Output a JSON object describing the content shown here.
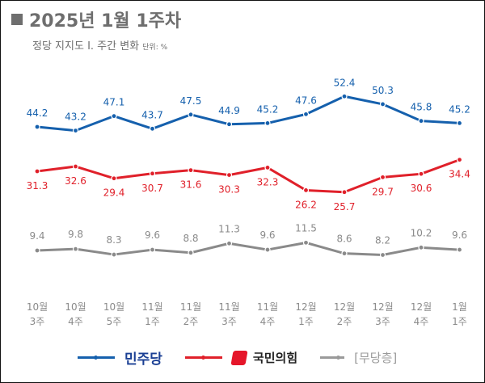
{
  "header": {
    "title": "2025년 1월 1주차",
    "subtitle": "정당 지지도 Ⅰ. 주간 변화",
    "unit": "단위: %"
  },
  "chart_data": {
    "type": "line",
    "title": "2025년 1월 1주차",
    "subtitle": "정당 지지도 Ⅰ. 주간 변화",
    "unit": "단위: %",
    "categories": [
      [
        "10월",
        "3주"
      ],
      [
        "10월",
        "4주"
      ],
      [
        "10월",
        "5주"
      ],
      [
        "11월",
        "1주"
      ],
      [
        "11월",
        "2주"
      ],
      [
        "11월",
        "3주"
      ],
      [
        "11월",
        "4주"
      ],
      [
        "12월",
        "1주"
      ],
      [
        "12월",
        "2주"
      ],
      [
        "12월",
        "3주"
      ],
      [
        "12월",
        "4주"
      ],
      [
        "1월",
        "1주"
      ]
    ],
    "series": [
      {
        "name": "민주당",
        "color": "#1560ad",
        "values": [
          44.2,
          43.2,
          47.1,
          43.7,
          47.5,
          44.9,
          45.2,
          47.6,
          52.4,
          50.3,
          45.8,
          45.2
        ]
      },
      {
        "name": "국민의힘",
        "color": "#e0202a",
        "values": [
          31.3,
          32.6,
          29.4,
          30.7,
          31.6,
          30.3,
          32.3,
          26.2,
          25.7,
          29.7,
          30.6,
          34.4
        ]
      },
      {
        "name": "[무당층]",
        "color": "#8a8a8a",
        "values": [
          9.4,
          9.8,
          8.3,
          9.6,
          8.8,
          11.3,
          9.6,
          11.5,
          8.6,
          8.2,
          10.2,
          9.6
        ]
      }
    ],
    "grid": false,
    "legend": "bottom"
  }
}
